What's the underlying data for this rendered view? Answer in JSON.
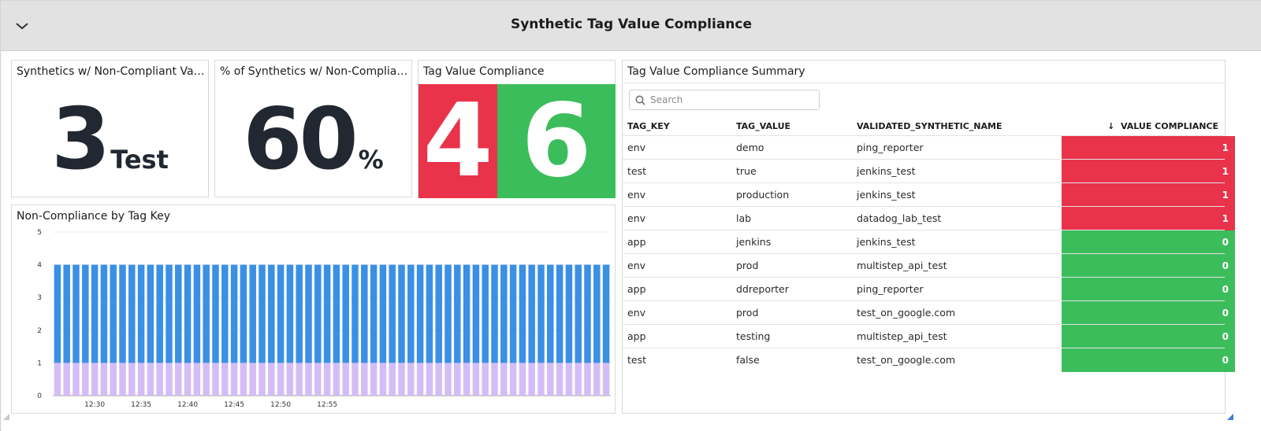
{
  "header": {
    "title": "Synthetic Tag Value Compliance",
    "collapse_icon": "chevron-down-icon"
  },
  "widgets": {
    "noncompliant_values": {
      "title": "Synthetics w/ Non-Compliant Values",
      "value": "3",
      "unit": "Test"
    },
    "noncompliant_percent": {
      "title": "% of Synthetics w/ Non-Compliant ...",
      "value": "60",
      "unit": "%"
    },
    "tag_value_compliance": {
      "title": "Tag Value Compliance",
      "tiles": [
        {
          "value": "4",
          "color": "#e8334a"
        },
        {
          "value": "6",
          "color": "#3cbd5c"
        }
      ]
    },
    "non_compliance_by_tag_key": {
      "title": "Non-Compliance by Tag Key"
    },
    "summary": {
      "title": "Tag Value Compliance Summary",
      "search_placeholder": "Search",
      "columns": [
        "TAG_KEY",
        "TAG_VALUE",
        "VALIDATED_SYNTHETIC_NAME",
        "↓  VALUE COMPLIANCE"
      ],
      "rows": [
        [
          "env",
          "demo",
          "ping_reporter",
          "1"
        ],
        [
          "test",
          "true",
          "jenkins_test",
          "1"
        ],
        [
          "env",
          "production",
          "jenkins_test",
          "1"
        ],
        [
          "env",
          "lab",
          "datadog_lab_test",
          "1"
        ],
        [
          "app",
          "jenkins",
          "jenkins_test",
          "0"
        ],
        [
          "env",
          "prod",
          "multistep_api_test",
          "0"
        ],
        [
          "app",
          "ddreporter",
          "ping_reporter",
          "0"
        ],
        [
          "env",
          "prod",
          "test_on_google.com",
          "0"
        ],
        [
          "app",
          "testing",
          "multistep_api_test",
          "0"
        ],
        [
          "test",
          "false",
          "test_on_google.com",
          "0"
        ]
      ],
      "compliance_colors": {
        "1": "#e8334a",
        "0": "#3cbd5c"
      }
    }
  },
  "chart_data": {
    "type": "bar",
    "stacked": true,
    "x_tick_labels": [
      "12:30",
      "12:35",
      "12:40",
      "12:45",
      "12:50",
      "12:55"
    ],
    "ylim": [
      0,
      5
    ],
    "y_ticks": [
      0,
      1,
      2,
      3,
      4,
      5
    ],
    "bar_count": 60,
    "series": [
      {
        "color": "#d4bdf6",
        "value": 1
      },
      {
        "color": "#3b8fe5",
        "value": 3
      }
    ],
    "grid": true,
    "legend": "none"
  }
}
